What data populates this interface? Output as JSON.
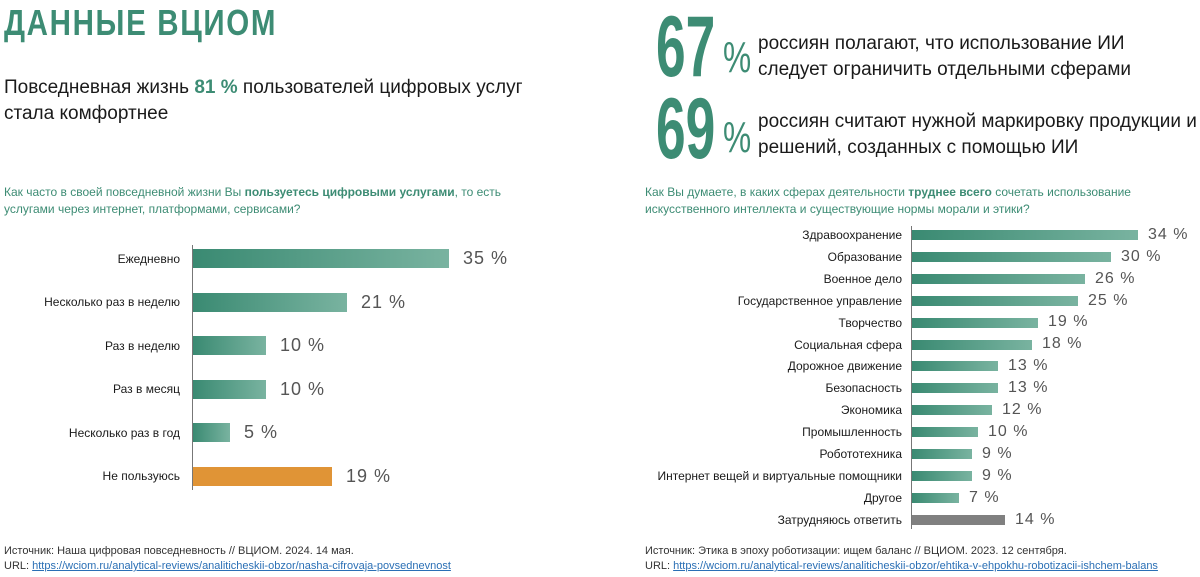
{
  "header": {
    "title": "ДАННЫЕ ВЦИОМ",
    "headline_pre": "Повседневная жизнь ",
    "headline_num": "81 %",
    "headline_post": " пользователей цифровых услуг стала комфортнее"
  },
  "stats": [
    {
      "value": "67",
      "pct": "%",
      "text": "россиян полагают, что использование ИИ следует ограничить отдельными сферами"
    },
    {
      "value": "69",
      "pct": "%",
      "text": "россиян считают нужной маркировку продукции и решений, созданных с помощью ИИ"
    }
  ],
  "chart_data": [
    {
      "type": "bar",
      "orientation": "horizontal",
      "title_pre": "Как часто в своей повседневной жизни Вы ",
      "title_bold": "пользуетесь цифровыми услугами",
      "title_post": ", то есть услугами через интернет, платформами, сервисами?",
      "categories": [
        "Ежедневно",
        "Несколько раз в неделю",
        "Раз в неделю",
        "Раз в месяц",
        "Несколько раз в год",
        "Не пользуюсь"
      ],
      "values": [
        35,
        21,
        10,
        10,
        5,
        19
      ],
      "value_labels": [
        "35 %",
        "21 %",
        "10 %",
        "10 %",
        "5 %",
        "19 %"
      ],
      "unit": "%",
      "xlim": [
        0,
        35
      ],
      "colors": [
        "#3f8f77",
        "#3f8f77",
        "#3f8f77",
        "#3f8f77",
        "#3f8f77",
        "#e09436"
      ],
      "source_text": "Источник: Наша цифровая повседневность // ВЦИОМ. 2024. 14 мая.",
      "source_url_label": "URL: ",
      "source_url": "https://wciom.ru/analytical-reviews/analiticheskii-obzor/nasha-cifrovaja-povsednevnost"
    },
    {
      "type": "bar",
      "orientation": "horizontal",
      "title_pre": "Как Вы думаете, в каких сферах деятельности ",
      "title_bold": "труднее всего",
      "title_post": " сочетать использование искусственного интеллекта и существующие нормы морали и этики?",
      "categories": [
        "Здравоохранение",
        "Образование",
        "Военное дело",
        "Государственное управление",
        "Творчество",
        "Социальная сфера",
        "Дорожное движение",
        "Безопасность",
        "Экономика",
        "Промышленность",
        "Робототехника",
        "Интернет вещей и виртуальные помощники",
        "Другое",
        "Затрудняюсь ответить"
      ],
      "values": [
        34,
        30,
        26,
        25,
        19,
        18,
        13,
        13,
        12,
        10,
        9,
        9,
        7,
        14
      ],
      "value_labels": [
        "34 %",
        "30 %",
        "26 %",
        "25 %",
        "19 %",
        "18 %",
        "13 %",
        "13 %",
        "12 %",
        "10 %",
        "9 %",
        "9 %",
        "7 %",
        "14 %"
      ],
      "unit": "%",
      "xlim": [
        0,
        34
      ],
      "colors": [
        "#3f8f77",
        "#3f8f77",
        "#3f8f77",
        "#3f8f77",
        "#3f8f77",
        "#3f8f77",
        "#3f8f77",
        "#3f8f77",
        "#3f8f77",
        "#3f8f77",
        "#3f8f77",
        "#3f8f77",
        "#3f8f77",
        "#808080"
      ],
      "source_text": "Источник: Этика в эпоху роботизации: ищем баланс // ВЦИОМ. 2023. 12 сентября.",
      "source_url_label": "URL: ",
      "source_url": "https://wciom.ru/analytical-reviews/analiticheskii-obzor/ehtika-v-ehpokhu-robotizacii-ishchem-balans"
    }
  ]
}
